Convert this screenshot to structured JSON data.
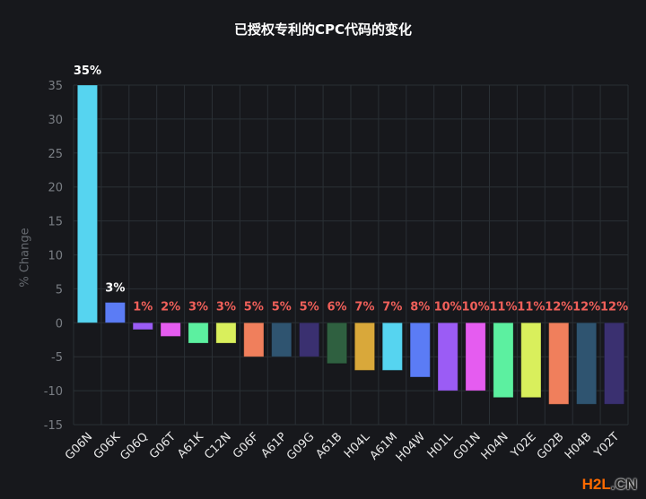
{
  "chart_data": {
    "type": "bar",
    "title": "已授权专利的CPC代码的变化",
    "xlabel": "",
    "ylabel": "% Change",
    "ylim": [
      -15,
      35
    ],
    "yticks": [
      35,
      30,
      25,
      20,
      15,
      10,
      5,
      0,
      -5,
      -10,
      -15
    ],
    "grid": true,
    "categories": [
      "G06N",
      "G06K",
      "G06Q",
      "G06T",
      "A61K",
      "C12N",
      "G06F",
      "A61P",
      "G09G",
      "A61B",
      "H04L",
      "A61M",
      "H04W",
      "H01L",
      "G01N",
      "H04N",
      "Y02E",
      "G02B",
      "H04B",
      "Y02T"
    ],
    "values": [
      35,
      3,
      -1,
      -2,
      -3,
      -3,
      -5,
      -5,
      -5,
      -6,
      -7,
      -7,
      -8,
      -10,
      -10,
      -11,
      -11,
      -12,
      -12,
      -12
    ],
    "data_labels": [
      "35%",
      "3%",
      "1%",
      "2%",
      "3%",
      "3%",
      "5%",
      "5%",
      "5%",
      "6%",
      "7%",
      "7%",
      "8%",
      "10%",
      "10%",
      "11%",
      "11%",
      "12%",
      "12%",
      "12%"
    ],
    "colors": [
      "#56d4f0",
      "#5b7cf5",
      "#9b5cf5",
      "#e55cf0",
      "#5cf0a0",
      "#d9ef5c",
      "#f07f5c",
      "#2f5470",
      "#3a3070",
      "#2f6040",
      "#d9a83a",
      "#56d4f0",
      "#5b7cf5",
      "#9b5cf5",
      "#e55cf0",
      "#5cf0a0",
      "#d9ef5c",
      "#f07f5c",
      "#2f5470",
      "#3a3070"
    ],
    "positive_label_color": "#ffffff",
    "negative_label_color": "#f0605a"
  },
  "watermark": {
    "part1": "H2L",
    "part2": ".CN"
  }
}
